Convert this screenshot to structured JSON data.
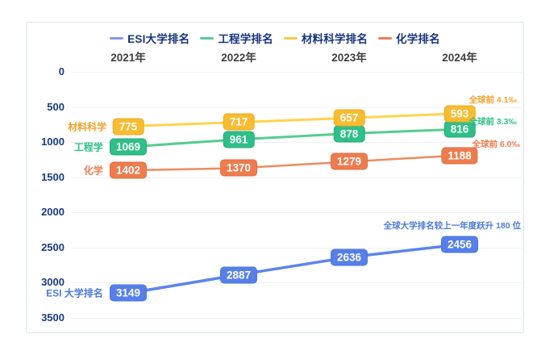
{
  "page": {
    "background": "#ffffff"
  },
  "legend": {
    "items": [
      {
        "label": "ESI大学排名",
        "color": "#7d9bed"
      },
      {
        "label": "工程学排名",
        "color": "#57cb9a"
      },
      {
        "label": "材料科学排名",
        "color": "#f2c94c"
      },
      {
        "label": "化学排名",
        "color": "#ec7f50"
      }
    ]
  },
  "chart_data": {
    "type": "line",
    "categories": [
      "2021年",
      "2022年",
      "2023年",
      "2024年"
    ],
    "series": [
      {
        "name": "ESI大学排名",
        "axis_label": "ESI 大学排名",
        "values": [
          3149,
          2887,
          2636,
          2456
        ],
        "line_color": "#5c84ef",
        "badge_color": "#567fea",
        "badge_border": "#4a73dd",
        "label_color": "#4d7bd8",
        "line_width": 3.5
      },
      {
        "name": "工程学排名",
        "axis_label": "工程学",
        "values": [
          1069,
          961,
          878,
          816
        ],
        "line_color": "#55cd8c",
        "badge_color": "#2fbf88",
        "badge_border": "#25aa78",
        "label_color": "#2fbf88",
        "line_width": 3
      },
      {
        "name": "材料科学排名",
        "axis_label": "材料科学",
        "values": [
          775,
          717,
          657,
          593
        ],
        "line_color": "#ffd44d",
        "badge_color": "#f7bc30",
        "badge_border": "#e8ab22",
        "label_color": "#f0a32f",
        "line_width": 3
      },
      {
        "name": "化学排名",
        "axis_label": "化学",
        "values": [
          1402,
          1370,
          1279,
          1188
        ],
        "line_color": "#ed8b5e",
        "badge_color": "#ee7c4e",
        "badge_border": "#dd6c3e",
        "label_color": "#ee7c4e",
        "line_width": 2.5
      }
    ],
    "y_axis": {
      "min": 0,
      "max": 3500,
      "step": 500,
      "inverted": true,
      "ticks": [
        0,
        500,
        1000,
        1500,
        2000,
        2500,
        3000,
        3500
      ]
    },
    "x_axis_position": "top",
    "grid": true,
    "legend_position": "top",
    "annotations": [
      {
        "text": "全球前 4.1‰",
        "color": "#f5a02c"
      },
      {
        "text": "全球前 3.3‰",
        "color": "#2fbf88"
      },
      {
        "text": "全球前 6.0‰",
        "color": "#ee7c4e"
      },
      {
        "text": "全球大学排名较上一年度跃升 180 位",
        "color": "#4d7bd8"
      }
    ]
  }
}
